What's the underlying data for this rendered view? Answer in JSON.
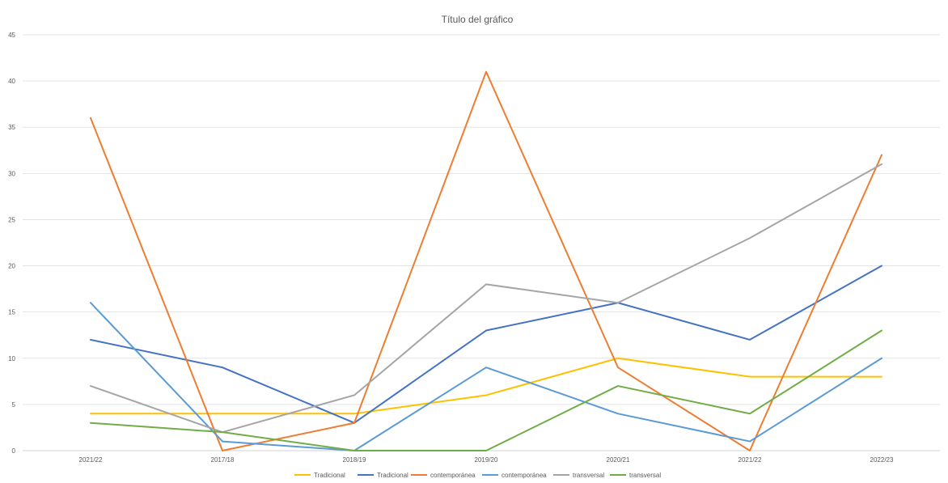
{
  "chart_data": {
    "type": "line",
    "title": "Título del gráfico",
    "categories": [
      "2021/22",
      "2017/18",
      "2018/19",
      "2019/20",
      "2020/21",
      "2021/22",
      "2022/23"
    ],
    "ylim": [
      0,
      45
    ],
    "yticks": [
      "0",
      "5",
      "10",
      "15",
      "20",
      "25",
      "30",
      "35",
      "40",
      "45"
    ],
    "grid": true,
    "legend_position": "bottom",
    "series": [
      {
        "name": "Tradicional",
        "color": "#FFC000",
        "values": [
          4,
          4,
          4,
          6,
          10,
          8,
          8
        ]
      },
      {
        "name": "Tradicional",
        "color": "#4472C4",
        "values": [
          12,
          9,
          3,
          13,
          16,
          12,
          20
        ]
      },
      {
        "name": "contemporánea",
        "color": "#ED7D31",
        "values": [
          36,
          0,
          3,
          41,
          9,
          0,
          32
        ]
      },
      {
        "name": "contemporánea",
        "color": "#5B9BD5",
        "values": [
          16,
          1,
          0,
          9,
          4,
          1,
          10
        ]
      },
      {
        "name": "transversal",
        "color": "#A5A5A5",
        "values": [
          7,
          2,
          6,
          18,
          16,
          23,
          31
        ]
      },
      {
        "name": "transversal",
        "color": "#70AD47",
        "values": [
          3,
          2,
          0,
          0,
          7,
          4,
          13
        ]
      }
    ]
  }
}
